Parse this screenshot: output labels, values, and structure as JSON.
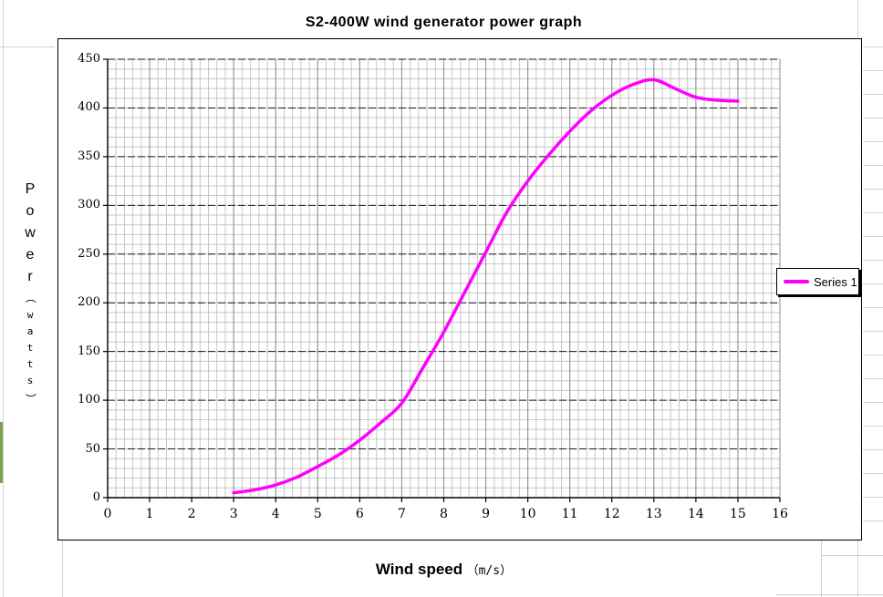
{
  "window": {
    "background_color": "#ffffff",
    "sheet_grid_color": "#d2d2d2",
    "accent_bar_color": "#7e9f4f"
  },
  "title": {
    "text": "S2-400W wind generator power graph"
  },
  "axis_titles": {
    "y_word_letters": [
      "P",
      "o",
      "w",
      "e",
      "r"
    ],
    "y_unit_open": "（",
    "y_unit_letters": [
      "w",
      "a",
      "t",
      "t",
      "s"
    ],
    "y_unit_close": "）",
    "x_text": "Wind speed",
    "x_unit": "（m/s）"
  },
  "legend": {
    "label": "Series 1",
    "line_color": "#ff00ff"
  },
  "chart_data": {
    "type": "line",
    "title": "S2-400W wind generator power graph",
    "xlabel": "Wind speed (m/s)",
    "ylabel": "Power (watts)",
    "xlim": [
      0,
      16
    ],
    "ylim": [
      0,
      450
    ],
    "x_major_step": 1,
    "x_minor_step": 0.2,
    "y_major_step": 50,
    "y_minor_step": 10,
    "x_ticks": [
      "0",
      "1",
      "2",
      "3",
      "4",
      "5",
      "6",
      "7",
      "8",
      "9",
      "10",
      "11",
      "12",
      "13",
      "14",
      "15",
      "16"
    ],
    "y_ticks": [
      "0",
      "50",
      "100",
      "150",
      "200",
      "250",
      "300",
      "350",
      "400",
      "450"
    ],
    "grid": {
      "minor_color": "#c6c6c6",
      "major_vertical_color": "#8f8f8f",
      "major_horizontal_color": "#1a1a1a",
      "axis_color": "#000000",
      "legend_position": "right",
      "grid_on": true
    },
    "series": [
      {
        "name": "Series 1",
        "color": "#ff00ff",
        "points": [
          [
            3,
            5
          ],
          [
            3.5,
            8
          ],
          [
            4,
            13
          ],
          [
            4.5,
            21
          ],
          [
            5,
            32
          ],
          [
            5.5,
            44
          ],
          [
            6,
            59
          ],
          [
            6.5,
            77
          ],
          [
            7,
            97
          ],
          [
            7.5,
            133
          ],
          [
            8,
            170
          ],
          [
            8.5,
            211
          ],
          [
            9,
            252
          ],
          [
            9.5,
            293
          ],
          [
            10,
            325
          ],
          [
            10.5,
            352
          ],
          [
            11,
            376
          ],
          [
            11.5,
            397
          ],
          [
            12,
            413
          ],
          [
            12.5,
            424
          ],
          [
            13,
            429
          ],
          [
            13.5,
            420
          ],
          [
            14,
            411
          ],
          [
            14.5,
            408
          ],
          [
            15,
            407
          ]
        ]
      }
    ]
  }
}
